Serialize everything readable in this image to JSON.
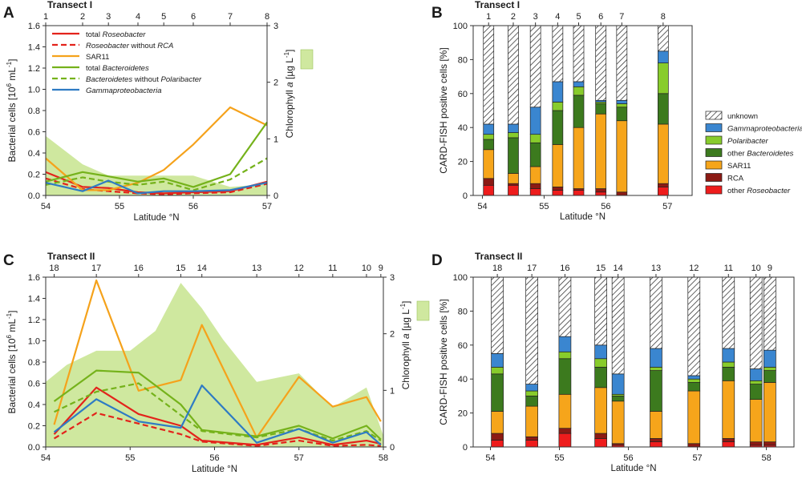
{
  "chart_data": [
    {
      "panel": "A",
      "type": "line",
      "title": "Transect I",
      "stations": [
        "1",
        "2",
        "3",
        "4",
        "5",
        "6",
        "7",
        "8"
      ],
      "station_lat": [
        54.0,
        54.5,
        54.85,
        55.25,
        55.6,
        56.0,
        56.5,
        57.0
      ],
      "xlabel": "Latitude °N",
      "xlim": [
        54,
        57
      ],
      "xticks": [
        54,
        55,
        56,
        57
      ],
      "ylabel_main": "Bacterial cells [10",
      "ylabel_sup1": "6",
      "ylabel_mid": " mL",
      "ylabel_sup2": "-1",
      "ylabel_end": "]",
      "ylim": [
        0,
        1.6
      ],
      "yticks": [
        "0.0",
        "0.2",
        "0.4",
        "0.6",
        "0.8",
        "1.0",
        "1.2",
        "1.4",
        "1.6"
      ],
      "y2label_main": "Chlorophyll ",
      "y2label_it": "a",
      "y2label_end": " [µg L",
      "y2label_sup": "-1",
      "y2label_close": "]",
      "y2lim": [
        0,
        3
      ],
      "y2ticks": [
        "0",
        "1",
        "2",
        "3"
      ],
      "chlorophyll": {
        "x": [
          54.0,
          54.5,
          54.85,
          55.25,
          55.6,
          56.0,
          56.5,
          57.0
        ],
        "y": [
          1.05,
          0.55,
          0.35,
          0.35,
          0.35,
          0.35,
          0.15,
          0.2
        ]
      },
      "legend": [
        {
          "pre": "total ",
          "it": "Roseobacter",
          "post": "",
          "color": "#e3231b",
          "dash": false
        },
        {
          "pre": "",
          "it": "Roseobacter",
          "post": " without ",
          "it2": "RCA",
          "color": "#e3231b",
          "dash": true
        },
        {
          "pre": "SAR11",
          "it": "",
          "post": "",
          "color": "#f5a21b",
          "dash": false
        },
        {
          "pre": "total ",
          "it": "Bacteroidetes",
          "post": "",
          "color": "#75b21b",
          "dash": false
        },
        {
          "pre": "",
          "it": "Bacteroidetes",
          "post": " without ",
          "it2": "Polaribacter",
          "color": "#75b21b",
          "dash": true
        },
        {
          "pre": "",
          "it": "Gammaproteobacteria",
          "post": "",
          "color": "#2e7bc4",
          "dash": false
        }
      ],
      "series": [
        {
          "name": "total Roseobacter",
          "color": "#e3231b",
          "dash": false,
          "x": [
            54.0,
            54.5,
            54.85,
            55.25,
            55.6,
            56.0,
            56.5,
            57.0
          ],
          "y": [
            0.22,
            0.08,
            0.07,
            0.03,
            0.02,
            0.03,
            0.04,
            0.13
          ]
        },
        {
          "name": "Roseobacter without RCA",
          "color": "#e3231b",
          "dash": true,
          "x": [
            54.0,
            54.5,
            54.85,
            55.25,
            55.6,
            56.0,
            56.5,
            57.0
          ],
          "y": [
            0.16,
            0.06,
            0.04,
            0.02,
            0.01,
            0.02,
            0.03,
            0.11
          ]
        },
        {
          "name": "SAR11",
          "color": "#f5a21b",
          "dash": false,
          "x": [
            54.0,
            54.5,
            54.85,
            55.25,
            55.6,
            56.0,
            56.5,
            57.0
          ],
          "y": [
            0.35,
            0.05,
            0.05,
            0.12,
            0.24,
            0.48,
            0.83,
            0.66
          ]
        },
        {
          "name": "total Bacteroidetes",
          "color": "#75b21b",
          "dash": false,
          "x": [
            54.0,
            54.5,
            54.85,
            55.25,
            55.6,
            56.0,
            56.5,
            57.0
          ],
          "y": [
            0.13,
            0.22,
            0.18,
            0.13,
            0.16,
            0.08,
            0.2,
            0.69
          ]
        },
        {
          "name": "Bacteroidetes without Polaribacter",
          "color": "#75b21b",
          "dash": true,
          "x": [
            54.0,
            54.5,
            54.85,
            55.25,
            55.6,
            56.0,
            56.5,
            57.0
          ],
          "y": [
            0.1,
            0.17,
            0.13,
            0.1,
            0.13,
            0.05,
            0.15,
            0.35
          ]
        },
        {
          "name": "Gammaproteobacteria",
          "color": "#2e7bc4",
          "dash": false,
          "x": [
            54.0,
            54.5,
            54.85,
            55.25,
            55.6,
            56.0,
            56.5,
            57.0
          ],
          "y": [
            0.12,
            0.04,
            0.14,
            0.02,
            0.04,
            0.04,
            0.05,
            0.12
          ]
        }
      ]
    },
    {
      "panel": "B",
      "type": "bar",
      "title": "Transect I",
      "stations": [
        "1",
        "2",
        "3",
        "4",
        "5",
        "6",
        "7",
        "8"
      ],
      "station_lat": [
        54.1,
        54.5,
        54.86,
        55.22,
        55.56,
        55.92,
        56.26,
        56.93
      ],
      "xlabel": "Latitude °N",
      "xlim": [
        53.85,
        57.4
      ],
      "xticks": [
        54,
        55,
        56,
        57
      ],
      "ylabel": "CARD-FISH positive cells [%]",
      "ylim": [
        0,
        100
      ],
      "yticks": [
        "0",
        "20",
        "40",
        "60",
        "80",
        "100"
      ],
      "categories_order": [
        "other Roseobacter",
        "RCA",
        "SAR11",
        "other Bacteroidetes",
        "Polaribacter",
        "Gammaproteobacteria",
        "unknown"
      ],
      "stacks": [
        [
          6,
          4,
          17,
          6,
          3,
          6,
          58
        ],
        [
          6,
          1,
          6,
          21,
          3,
          5,
          58
        ],
        [
          4,
          3,
          10,
          14,
          5,
          16,
          48
        ],
        [
          3,
          2,
          25,
          20,
          5,
          12,
          33
        ],
        [
          3,
          1,
          36,
          19,
          5,
          3,
          33
        ],
        [
          2,
          2,
          44,
          6,
          1,
          1,
          44
        ],
        [
          0,
          2,
          42,
          8,
          2,
          2,
          44
        ],
        [
          5,
          2,
          35,
          18,
          18,
          7,
          15
        ]
      ]
    },
    {
      "panel": "C",
      "type": "line",
      "title": "Transect II",
      "stations": [
        "18",
        "17",
        "16",
        "15",
        "14",
        "13",
        "12",
        "11",
        "10",
        "9"
      ],
      "station_lat": [
        54.1,
        54.6,
        55.1,
        55.6,
        55.85,
        56.5,
        57.0,
        57.4,
        57.8,
        57.97
      ],
      "xlabel": "Latitude °N",
      "xlim": [
        54,
        58
      ],
      "xticks": [
        54,
        55,
        56,
        57,
        58
      ],
      "ylabel_main": "Bacterial cells [10",
      "ylabel_sup1": "6",
      "ylabel_mid": " mL",
      "ylabel_sup2": "-1",
      "ylabel_end": "]",
      "ylim": [
        0,
        1.6
      ],
      "yticks": [
        "0.0",
        "0.2",
        "0.4",
        "0.6",
        "0.8",
        "1.0",
        "1.2",
        "1.4",
        "1.6"
      ],
      "y2label_main": "Chlorophyll ",
      "y2label_it": "a",
      "y2label_end": " [µg L",
      "y2label_sup": "-1",
      "y2label_close": "]",
      "y2lim": [
        0,
        3
      ],
      "y2ticks": [
        "0",
        "1",
        "2",
        "3"
      ],
      "chlorophyll": {
        "x": [
          54.0,
          54.25,
          54.6,
          55.0,
          55.3,
          55.6,
          55.85,
          56.1,
          56.5,
          57.0,
          57.4,
          57.8,
          58.0
        ],
        "y": [
          1.15,
          1.45,
          1.7,
          1.7,
          2.05,
          2.9,
          2.45,
          1.9,
          1.15,
          1.3,
          0.7,
          1.05,
          0.2
        ]
      },
      "series": [
        {
          "name": "total Roseobacter",
          "color": "#e3231b",
          "dash": false,
          "x": [
            54.1,
            54.6,
            55.1,
            55.6,
            55.85,
            56.5,
            57.0,
            57.4,
            57.8,
            57.97
          ],
          "y": [
            0.12,
            0.56,
            0.31,
            0.2,
            0.06,
            0.02,
            0.09,
            0.02,
            0.06,
            0.03
          ]
        },
        {
          "name": "Roseobacter without RCA",
          "color": "#e3231b",
          "dash": true,
          "x": [
            54.1,
            54.6,
            55.1,
            55.6,
            55.85,
            56.5,
            57.0,
            57.4,
            57.8,
            57.97
          ],
          "y": [
            0.08,
            0.32,
            0.22,
            0.12,
            0.05,
            0.01,
            0.06,
            0.01,
            0.02,
            0.01
          ]
        },
        {
          "name": "SAR11",
          "color": "#f5a21b",
          "dash": false,
          "x": [
            54.1,
            54.6,
            55.1,
            55.6,
            55.85,
            56.5,
            57.0,
            57.4,
            57.8,
            57.97
          ],
          "y": [
            0.21,
            1.57,
            0.53,
            0.63,
            1.15,
            0.09,
            0.66,
            0.38,
            0.47,
            0.24
          ]
        },
        {
          "name": "total Bacteroidetes",
          "color": "#75b21b",
          "dash": false,
          "x": [
            54.1,
            54.6,
            55.1,
            55.6,
            55.85,
            56.5,
            57.0,
            57.4,
            57.8,
            57.97
          ],
          "y": [
            0.43,
            0.72,
            0.7,
            0.4,
            0.16,
            0.1,
            0.2,
            0.08,
            0.2,
            0.07
          ]
        },
        {
          "name": "Bacteroidetes without Polaribacter",
          "color": "#75b21b",
          "dash": true,
          "x": [
            54.1,
            54.6,
            55.1,
            55.6,
            55.85,
            56.5,
            57.0,
            57.4,
            57.8,
            57.97
          ],
          "y": [
            0.33,
            0.52,
            0.6,
            0.3,
            0.15,
            0.09,
            0.17,
            0.06,
            0.15,
            0.06
          ]
        },
        {
          "name": "Gammaproteobacteria",
          "color": "#2e7bc4",
          "dash": false,
          "x": [
            54.1,
            54.6,
            55.1,
            55.6,
            55.85,
            56.5,
            57.0,
            57.4,
            57.8,
            57.97
          ],
          "y": [
            0.14,
            0.45,
            0.24,
            0.18,
            0.58,
            0.04,
            0.17,
            0.04,
            0.14,
            0.02
          ]
        }
      ]
    },
    {
      "panel": "D",
      "type": "bar",
      "title": "Transect II",
      "stations": [
        "18",
        "17",
        "16",
        "15",
        "14",
        "13",
        "12",
        "11",
        "10",
        "9"
      ],
      "station_lat": [
        54.1,
        54.6,
        55.08,
        55.6,
        55.85,
        56.4,
        56.95,
        57.45,
        57.85,
        58.05
      ],
      "xlabel": "Latitude °N",
      "xlim": [
        53.75,
        58.4
      ],
      "xticks": [
        54,
        55,
        56,
        57,
        58
      ],
      "ylabel": "CARD-FISH positive cells [%]",
      "ylim": [
        0,
        100
      ],
      "yticks": [
        "0",
        "20",
        "40",
        "60",
        "80",
        "100"
      ],
      "legend": [
        {
          "label": "unknown",
          "italic": false,
          "key": "unknown"
        },
        {
          "label": "Gammaproteobacteria",
          "italic": true,
          "key": "gamma"
        },
        {
          "label": "Polaribacter",
          "italic": true,
          "key": "polari"
        },
        {
          "label": "other Bacteroidetes",
          "italic": false,
          "pre": "other ",
          "it": "Bacteroidetes",
          "key": "bact"
        },
        {
          "label": "SAR11",
          "italic": false,
          "key": "sar11"
        },
        {
          "label": "RCA",
          "italic": false,
          "key": "rca"
        },
        {
          "label": "other Roseobacter",
          "italic": false,
          "pre": "other ",
          "it": "Roseobacter",
          "key": "ros"
        }
      ],
      "stacks": [
        [
          4,
          4,
          13,
          22,
          4,
          8,
          45
        ],
        [
          4,
          2,
          18,
          6,
          3,
          4,
          63
        ],
        [
          8,
          3,
          20,
          21,
          4,
          9,
          35
        ],
        [
          5,
          3,
          27,
          12,
          5,
          8,
          40
        ],
        [
          1,
          1,
          25,
          3,
          1,
          12,
          57
        ],
        [
          3,
          2,
          16,
          24,
          2,
          11,
          42
        ],
        [
          0,
          2,
          31,
          5,
          2,
          2,
          58
        ],
        [
          3,
          2,
          34,
          8,
          3,
          8,
          42
        ],
        [
          1,
          2,
          25,
          9,
          2,
          7,
          54
        ],
        [
          1,
          2,
          35,
          7,
          2,
          10,
          43
        ]
      ]
    }
  ],
  "panel_letters": [
    "A",
    "B",
    "C",
    "D"
  ],
  "bar_colors": {
    "ros": "#ee1c1c",
    "rca": "#8b1a14",
    "sar11": "#f6a51b",
    "bact": "#3c7a1e",
    "polari": "#88cc2c",
    "gamma": "#3a86d0",
    "unknown": "#ffffff"
  },
  "chl_fill": "#cfe89f"
}
